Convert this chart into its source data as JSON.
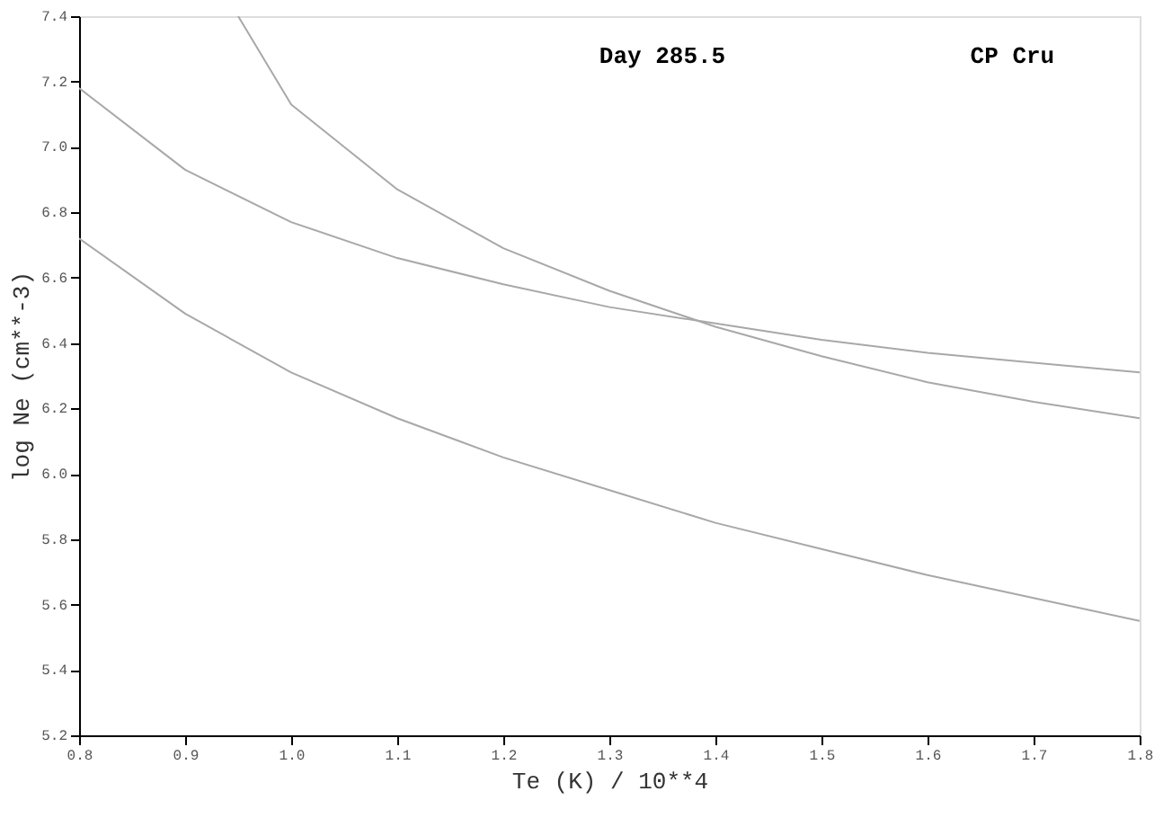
{
  "chart_data": {
    "type": "line",
    "xlabel": "Te (K) / 10**4",
    "ylabel": "log Ne (cm**-3)",
    "annotations": [
      "Day 285.5",
      "CP Cru"
    ],
    "xlim": [
      0.8,
      1.8
    ],
    "xticks": [
      {
        "value": 0.8,
        "label": "0.8"
      },
      {
        "value": 0.9,
        "label": "0.9"
      },
      {
        "value": 1.0,
        "label": "1.0"
      },
      {
        "value": 1.1,
        "label": "1.1"
      },
      {
        "value": 1.2,
        "label": "1.2"
      },
      {
        "value": 1.3,
        "label": "1.3"
      },
      {
        "value": 1.4,
        "label": "1.4"
      },
      {
        "value": 1.5,
        "label": "1.5"
      },
      {
        "value": 1.6,
        "label": "1.6"
      },
      {
        "value": 1.7,
        "label": "1.7"
      },
      {
        "value": 1.8,
        "label": "1.8"
      }
    ],
    "ylim": [
      5.2,
      7.4
    ],
    "yticks": [
      {
        "value": 5.2,
        "label": "5.2"
      },
      {
        "value": 5.4,
        "label": "5.4"
      },
      {
        "value": 5.6,
        "label": "5.6"
      },
      {
        "value": 5.8,
        "label": "5.8"
      },
      {
        "value": 6.0,
        "label": "6.0"
      },
      {
        "value": 6.2,
        "label": "6.2"
      },
      {
        "value": 6.4,
        "label": "6.4"
      },
      {
        "value": 6.6,
        "label": "6.6"
      },
      {
        "value": 6.8,
        "label": "6.8"
      },
      {
        "value": 7.0,
        "label": "7.0"
      },
      {
        "value": 7.2,
        "label": "7.2"
      },
      {
        "value": 7.4,
        "label": "7.4"
      }
    ],
    "grid": false,
    "marker": "none",
    "line_style": "solid",
    "series": [
      {
        "color": "#a8a8a8",
        "x": [
          0.8,
          0.9,
          1.0,
          1.1,
          1.2,
          1.3,
          1.4,
          1.5,
          1.6,
          1.7,
          1.8
        ],
        "values": [
          6.72,
          6.49,
          6.31,
          6.17,
          6.05,
          5.95,
          5.85,
          5.77,
          5.69,
          5.62,
          5.55
        ]
      },
      {
        "color": "#a8a8a8",
        "x": [
          0.8,
          0.9,
          1.0,
          1.1,
          1.2,
          1.3,
          1.4,
          1.5,
          1.6,
          1.7,
          1.8
        ],
        "values": [
          7.18,
          6.93,
          6.77,
          6.66,
          6.58,
          6.51,
          6.46,
          6.41,
          6.37,
          6.34,
          6.31
        ]
      },
      {
        "color": "#a8a8a8",
        "x": [
          0.95,
          1.0,
          1.1,
          1.2,
          1.3,
          1.4,
          1.5,
          1.6,
          1.7,
          1.8
        ],
        "values": [
          7.4,
          7.13,
          6.87,
          6.69,
          6.56,
          6.45,
          6.36,
          6.28,
          6.22,
          6.17
        ]
      }
    ]
  }
}
